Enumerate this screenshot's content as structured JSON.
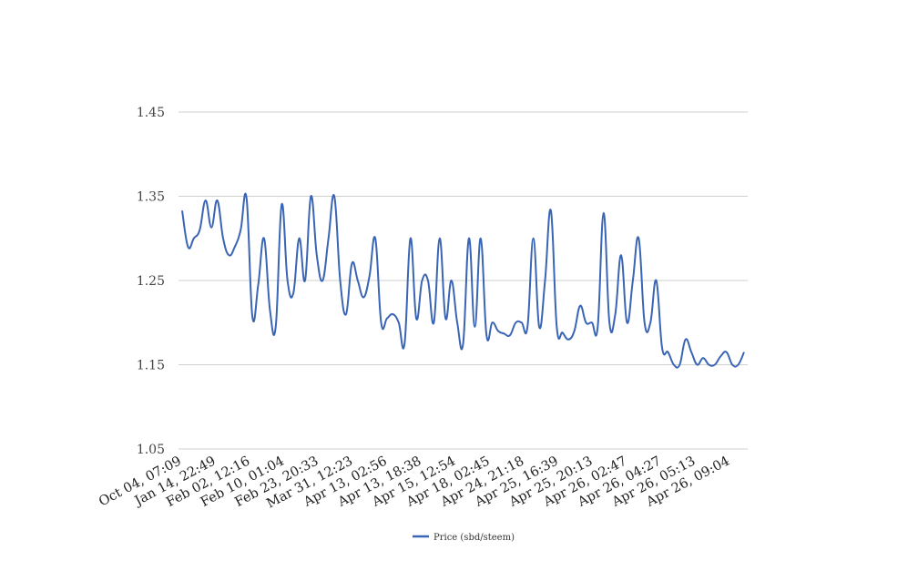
{
  "chart_data": {
    "type": "line",
    "title": "",
    "xlabel": "",
    "ylabel": "",
    "ylim": [
      1.05,
      1.45
    ],
    "yticks": [
      "1.45",
      "1.35",
      "1.25",
      "1.15",
      "1.05"
    ],
    "xticks": [
      "Oct 04, 07:09",
      "Jan 14, 22:49",
      "Feb 02, 12:16",
      "Feb 10, 01:04",
      "Feb 23, 20:33",
      "Mar 31, 12:23",
      "Apr 13, 02:56",
      "Apr 13, 18:38",
      "Apr 15, 12:54",
      "Apr 18, 02:45",
      "Apr 24, 21:18",
      "Apr 25, 16:39",
      "Apr 25, 20:13",
      "Apr 26, 02:47",
      "Apr 26, 04:27",
      "Apr 26, 05:13",
      "Apr 26, 09:04"
    ],
    "grid": true,
    "legend_position": "bottom",
    "series": [
      {
        "name": "Price (sbd/steem)",
        "color": "#3a65b5",
        "values": [
          1.333,
          1.29,
          1.3,
          1.31,
          1.345,
          1.313,
          1.345,
          1.3,
          1.28,
          1.29,
          1.31,
          1.348,
          1.207,
          1.245,
          1.3,
          1.215,
          1.196,
          1.34,
          1.25,
          1.235,
          1.3,
          1.25,
          1.35,
          1.28,
          1.25,
          1.3,
          1.35,
          1.25,
          1.21,
          1.27,
          1.25,
          1.23,
          1.255,
          1.3,
          1.2,
          1.205,
          1.21,
          1.2,
          1.175,
          1.3,
          1.205,
          1.25,
          1.25,
          1.2,
          1.3,
          1.205,
          1.25,
          1.2,
          1.175,
          1.3,
          1.195,
          1.3,
          1.185,
          1.2,
          1.19,
          1.187,
          1.185,
          1.2,
          1.2,
          1.195,
          1.3,
          1.195,
          1.25,
          1.333,
          1.195,
          1.188,
          1.18,
          1.19,
          1.22,
          1.2,
          1.2,
          1.195,
          1.33,
          1.2,
          1.21,
          1.28,
          1.2,
          1.25,
          1.3,
          1.2,
          1.2,
          1.25,
          1.17,
          1.165,
          1.15,
          1.15,
          1.18,
          1.165,
          1.15,
          1.158,
          1.15,
          1.15,
          1.16,
          1.165,
          1.15,
          1.15,
          1.165
        ]
      }
    ]
  }
}
